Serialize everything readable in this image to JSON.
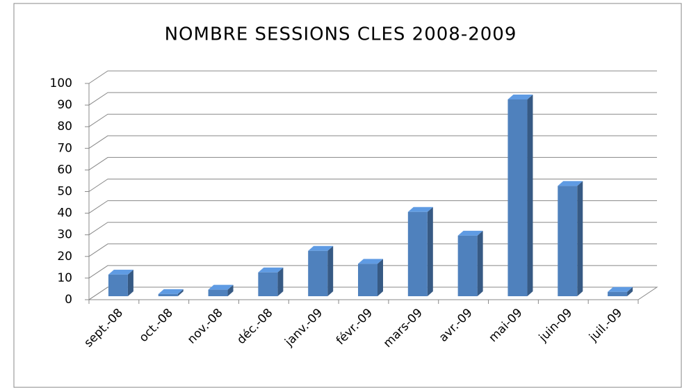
{
  "chart_data": {
    "type": "bar",
    "title": "NOMBRE SESSIONS CLES 2008-2009",
    "categories": [
      "sept.-08",
      "oct.-08",
      "nov.-08",
      "déc.-08",
      "janv.-09",
      "févr.-09",
      "mars-09",
      "avr.-09",
      "mai-09",
      "juin-09",
      "juil.-09"
    ],
    "values": [
      10,
      1,
      3,
      11,
      21,
      15,
      39,
      28,
      91,
      51,
      2
    ],
    "color": "#4f81bd",
    "ylim": [
      0,
      100
    ],
    "yticks": [
      0,
      10,
      20,
      30,
      40,
      50,
      60,
      70,
      80,
      90,
      100
    ],
    "grid": true
  }
}
